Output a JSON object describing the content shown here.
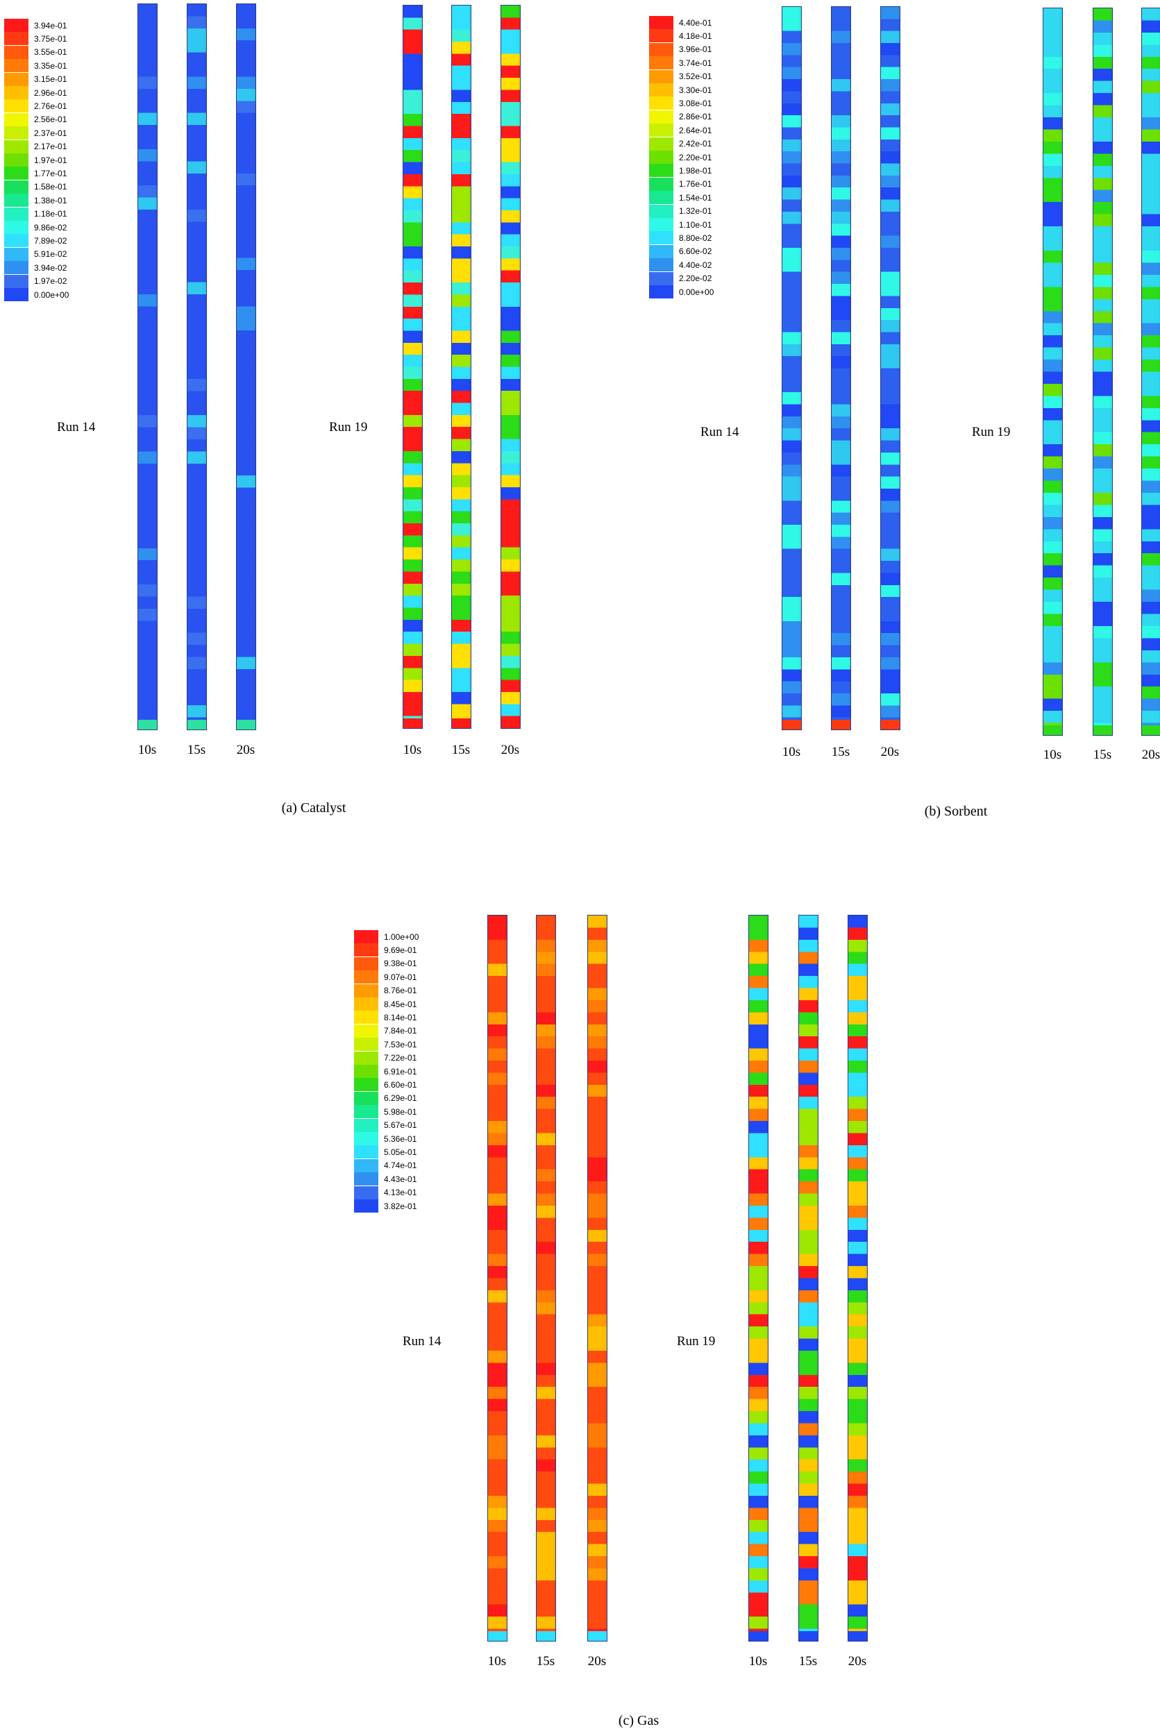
{
  "panels": [
    {
      "id": "catalyst",
      "caption": "(a) Catalyst",
      "legend_labels": [
        "3.94e-01",
        "3.75e-01",
        "3.55e-01",
        "3.35e-01",
        "3.15e-01",
        "2.96e-01",
        "2.76e-01",
        "2.56e-01",
        "2.37e-01",
        "2.17e-01",
        "1.97e-01",
        "1.77e-01",
        "1.58e-01",
        "1.38e-01",
        "1.18e-01",
        "9.86e-02",
        "7.89e-02",
        "5.91e-02",
        "3.94e-02",
        "1.97e-02",
        "0.00e+00"
      ],
      "runs": [
        {
          "label": "Run 14",
          "times": [
            "10s",
            "15s",
            "20s"
          ],
          "field": "low"
        },
        {
          "label": "Run 19",
          "times": [
            "10s",
            "15s",
            "20s"
          ],
          "field": "mixed-high"
        }
      ]
    },
    {
      "id": "sorbent",
      "caption": "(b) Sorbent",
      "legend_labels": [
        "4.40e-01",
        "4.18e-01",
        "3.96e-01",
        "3.74e-01",
        "3.52e-01",
        "3.30e-01",
        "3.08e-01",
        "2.86e-01",
        "2.64e-01",
        "2.42e-01",
        "2.20e-01",
        "1.98e-01",
        "1.76e-01",
        "1.54e-01",
        "1.32e-01",
        "1.10e-01",
        "8.80e-02",
        "6.60e-02",
        "4.40e-02",
        "2.20e-02",
        "0.00e+00"
      ],
      "runs": [
        {
          "label": "Run 14",
          "times": [
            "10s",
            "15s",
            "20s"
          ],
          "field": "low-mixed"
        },
        {
          "label": "Run 19",
          "times": [
            "10s",
            "15s",
            "20s"
          ],
          "field": "mid"
        }
      ]
    },
    {
      "id": "gas",
      "caption": "(c) Gas",
      "legend_labels": [
        "1.00e+00",
        "9.69e-01",
        "9.38e-01",
        "9.07e-01",
        "8.76e-01",
        "8.45e-01",
        "8.14e-01",
        "7.84e-01",
        "7.53e-01",
        "7.22e-01",
        "6.91e-01",
        "6.60e-01",
        "6.29e-01",
        "5.98e-01",
        "5.67e-01",
        "5.36e-01",
        "5.05e-01",
        "4.74e-01",
        "4.43e-01",
        "4.13e-01",
        "3.82e-01"
      ],
      "runs": [
        {
          "label": "Run 14",
          "times": [
            "10s",
            "15s",
            "20s"
          ],
          "field": "high"
        },
        {
          "label": "Run 19",
          "times": [
            "10s",
            "15s",
            "20s"
          ],
          "field": "high-mixed"
        }
      ]
    }
  ],
  "colormap": [
    "#ff1a1a",
    "#ff3a12",
    "#ff5a0c",
    "#ff7a06",
    "#ff9a00",
    "#ffbf00",
    "#ffe000",
    "#f0f500",
    "#c8f000",
    "#9ee800",
    "#6de000",
    "#2cdc18",
    "#18e05a",
    "#18e890",
    "#22f0c0",
    "#30f8e6",
    "#30e0ff",
    "#30b8f8",
    "#3090f0",
    "#3a6cf0",
    "#2048f5"
  ]
}
